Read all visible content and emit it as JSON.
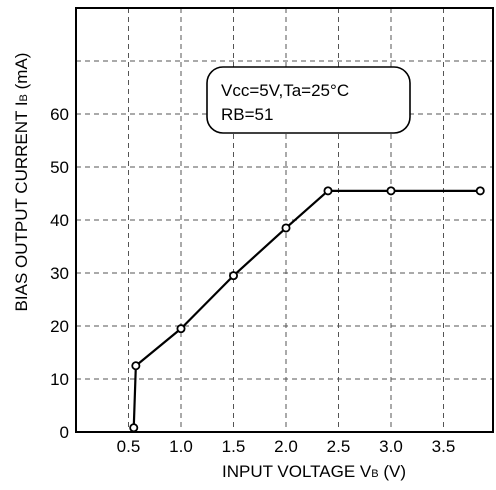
{
  "chart_data": {
    "type": "line",
    "xlabel_main": "INPUT VOLTAGE V",
    "xlabel_sub": "B",
    "xlabel_unit": " (V)",
    "ylabel_main": "BIAS OUTPUT CURRENT I",
    "ylabel_sub": "B",
    "ylabel_unit": " (mA)",
    "xlim": [
      0,
      4.0
    ],
    "ylim": [
      0,
      80
    ],
    "grid": true,
    "x_ticks": [
      {
        "value": 0.5,
        "label": "0.5"
      },
      {
        "value": 1.0,
        "label": "1.0"
      },
      {
        "value": 1.5,
        "label": "1.5"
      },
      {
        "value": 2.0,
        "label": "2.0"
      },
      {
        "value": 2.5,
        "label": "2.5"
      },
      {
        "value": 3.0,
        "label": "3.0"
      },
      {
        "value": 3.5,
        "label": "3.5"
      }
    ],
    "y_ticks": [
      {
        "value": 0,
        "label": "0"
      },
      {
        "value": 10,
        "label": "10"
      },
      {
        "value": 20,
        "label": "20"
      },
      {
        "value": 30,
        "label": "30"
      },
      {
        "value": 40,
        "label": "40"
      },
      {
        "value": 50,
        "label": "50"
      },
      {
        "value": 60,
        "label": "60"
      }
    ],
    "series": [
      {
        "x": [
          0.55,
          0.57,
          1.0,
          1.5,
          2.0,
          2.4,
          3.0,
          3.85
        ],
        "y": [
          0.8,
          12.5,
          19.5,
          29.5,
          38.5,
          45.5,
          45.5,
          45.5
        ]
      }
    ],
    "annotation": {
      "line1": "Vcc=5V,Ta=25°C",
      "line2": "RB=51"
    }
  }
}
